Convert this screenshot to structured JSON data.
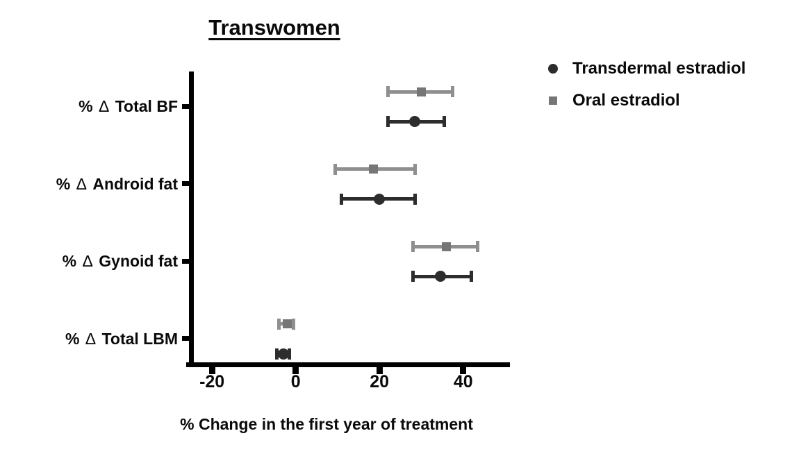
{
  "chart_data": {
    "type": "scatter",
    "subtype": "horizontal-dot-plot-with-error-bars",
    "title": "Transwomen",
    "xlabel": "% Change in the first year of treatment",
    "categories": [
      "% Δ Total BF",
      "% Δ Android fat",
      "% Δ Gynoid fat",
      "% Δ Total LBM"
    ],
    "series": [
      {
        "name": "Transdermal estradiol",
        "marker": "circle",
        "color": "#2d2d2d",
        "line_color": "#2d2d2d",
        "means": [
          28.5,
          20,
          34.5,
          -3
        ],
        "ci_low": [
          22,
          11,
          28,
          -4.5
        ],
        "ci_high": [
          35.5,
          28.5,
          42,
          -1.5
        ]
      },
      {
        "name": "Oral estradiol",
        "marker": "square",
        "color": "#767676",
        "line_color": "#8f8f8f",
        "means": [
          30,
          18.5,
          36,
          -2
        ],
        "ci_low": [
          22,
          9.5,
          28,
          -4
        ],
        "ci_high": [
          37.5,
          28.5,
          43.5,
          -0.5
        ]
      }
    ],
    "x_ticks": [
      -20,
      0,
      20,
      40
    ],
    "xlim": [
      -25.5,
      50.5
    ],
    "grid": false,
    "legend_position": "top-right",
    "axis_color": "#000000"
  }
}
